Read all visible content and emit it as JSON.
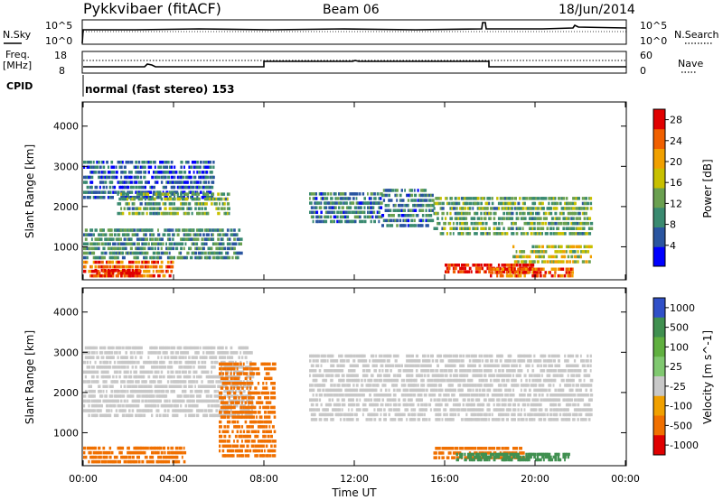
{
  "header": {
    "station": "Pykkvibaer (fitACF)",
    "beam": "Beam 06",
    "date": "18/Jun/2014"
  },
  "noise_panel": {
    "left_label": "N.Sky",
    "left_top": "10^5",
    "left_bottom": "10^0",
    "right_top": "10^5",
    "right_bottom": "10^0",
    "right_label": "N.Search"
  },
  "freq_panel": {
    "left_label_1": "Freq.",
    "left_label_2": "[MHz]",
    "left_top": "18",
    "left_bottom": "8",
    "right_top": "60",
    "right_bottom": "0",
    "right_label": "Nave"
  },
  "cpid": {
    "label": "CPID",
    "text": "normal (fast stereo) 153"
  },
  "colors": {
    "power_scale": [
      "#0000ff",
      "#2a55a0",
      "#3a8a70",
      "#6aa050",
      "#c8c000",
      "#f0a000",
      "#f06000",
      "#e00000"
    ],
    "velocity_scale": [
      "#3050c8",
      "#409050",
      "#60b040",
      "#80c870",
      "#c8c8c8",
      "#f0a000",
      "#f07000",
      "#e00000"
    ]
  },
  "chart_data": [
    {
      "type": "heatmap",
      "panel": "power",
      "ylabel": "Slant Range [km]",
      "ylim": [
        180,
        4600
      ],
      "y_ticks": [
        1000,
        2000,
        3000,
        4000
      ],
      "xlim_hours": [
        0,
        24
      ],
      "x_tick_labels": [
        "00:00",
        "04:00",
        "08:00",
        "12:00",
        "16:00",
        "20:00",
        "00:00"
      ],
      "colorbar": {
        "label": "Power [dB]",
        "range": [
          0,
          30
        ],
        "ticks": [
          4,
          8,
          12,
          16,
          20,
          24,
          28
        ]
      },
      "regions": [
        {
          "t0": 0.0,
          "t1": 5.8,
          "r0": 2200,
          "r1": 3200,
          "power": 6
        },
        {
          "t0": 1.5,
          "t1": 6.5,
          "r0": 1800,
          "r1": 2400,
          "power": 12
        },
        {
          "t0": 0.0,
          "t1": 7.0,
          "r0": 700,
          "r1": 1500,
          "power": 10
        },
        {
          "t0": 0.0,
          "t1": 4.0,
          "r0": 250,
          "r1": 700,
          "power": 24
        },
        {
          "t0": 0.5,
          "t1": 2.5,
          "r0": 250,
          "r1": 450,
          "power": 28
        },
        {
          "t0": 10.0,
          "t1": 13.2,
          "r0": 1600,
          "r1": 2400,
          "power": 8
        },
        {
          "t0": 13.2,
          "t1": 15.5,
          "r0": 1500,
          "r1": 2500,
          "power": 8
        },
        {
          "t0": 15.5,
          "t1": 22.5,
          "r0": 1300,
          "r1": 2300,
          "power": 12
        },
        {
          "t0": 16.0,
          "t1": 20.0,
          "r0": 350,
          "r1": 600,
          "power": 28
        },
        {
          "t0": 18.0,
          "t1": 21.7,
          "r0": 250,
          "r1": 500,
          "power": 24
        },
        {
          "t0": 19.0,
          "t1": 22.5,
          "r0": 600,
          "r1": 1100,
          "power": 16
        }
      ]
    },
    {
      "type": "heatmap",
      "panel": "velocity",
      "ylabel": "Slant Range [km]",
      "ylim": [
        180,
        4600
      ],
      "y_ticks": [
        1000,
        2000,
        3000,
        4000
      ],
      "xlim_hours": [
        0,
        24
      ],
      "x_tick_labels": [
        "00:00",
        "04:00",
        "08:00",
        "12:00",
        "16:00",
        "20:00",
        "00:00"
      ],
      "xlabel": "Time UT",
      "colorbar": {
        "label": "Velocity [m s^-1]",
        "tick_labels": [
          "1000",
          "500",
          "100",
          "25",
          "-25",
          "-100",
          "-500",
          "-1000"
        ]
      },
      "regions": [
        {
          "t0": 0.0,
          "t1": 7.5,
          "r0": 1400,
          "r1": 3200,
          "velocity": 0
        },
        {
          "t0": 0.0,
          "t1": 4.5,
          "r0": 250,
          "r1": 700,
          "velocity": -200
        },
        {
          "t0": 6.0,
          "t1": 8.5,
          "r0": 400,
          "r1": 2800,
          "velocity": -300
        },
        {
          "t0": 10.0,
          "t1": 22.5,
          "r0": 1300,
          "r1": 3000,
          "velocity": 0
        },
        {
          "t0": 15.5,
          "t1": 19.5,
          "r0": 350,
          "r1": 700,
          "velocity": -200
        },
        {
          "t0": 16.5,
          "t1": 21.5,
          "r0": 300,
          "r1": 500,
          "velocity": 300
        }
      ]
    }
  ]
}
